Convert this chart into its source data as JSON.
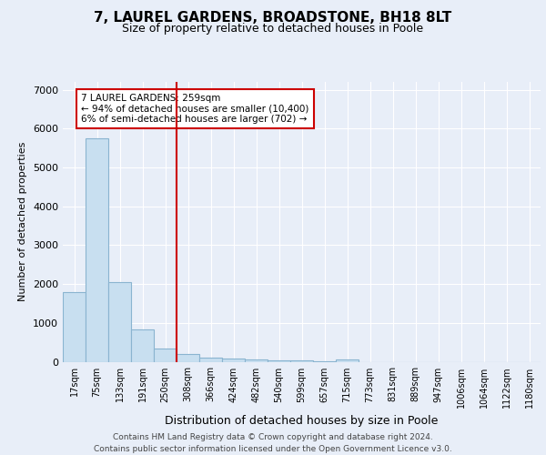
{
  "title1": "7, LAUREL GARDENS, BROADSTONE, BH18 8LT",
  "title2": "Size of property relative to detached houses in Poole",
  "xlabel": "Distribution of detached houses by size in Poole",
  "ylabel": "Number of detached properties",
  "footer1": "Contains HM Land Registry data © Crown copyright and database right 2024.",
  "footer2": "Contains public sector information licensed under the Open Government Licence v3.0.",
  "categories": [
    "17sqm",
    "75sqm",
    "133sqm",
    "191sqm",
    "250sqm",
    "308sqm",
    "366sqm",
    "424sqm",
    "482sqm",
    "540sqm",
    "599sqm",
    "657sqm",
    "715sqm",
    "773sqm",
    "831sqm",
    "889sqm",
    "947sqm",
    "1006sqm",
    "1064sqm",
    "1122sqm",
    "1180sqm"
  ],
  "values": [
    1780,
    5750,
    2060,
    820,
    350,
    200,
    110,
    80,
    55,
    40,
    30,
    20,
    65,
    0,
    0,
    0,
    0,
    0,
    0,
    0,
    0
  ],
  "bar_color": "#c8dff0",
  "bar_edge_color": "#8ab4d0",
  "vline_x": 4.5,
  "vline_color": "#cc0000",
  "annotation_box_text": "7 LAUREL GARDENS: 259sqm\n← 94% of detached houses are smaller (10,400)\n6% of semi-detached houses are larger (702) →",
  "annotation_box_color": "#cc0000",
  "annotation_box_fill": "white",
  "ylim": [
    0,
    7200
  ],
  "bg_color": "#e8eef8",
  "plot_bg_color": "#e8eef8",
  "grid_color": "#ffffff",
  "yticks": [
    0,
    1000,
    2000,
    3000,
    4000,
    5000,
    6000,
    7000
  ]
}
